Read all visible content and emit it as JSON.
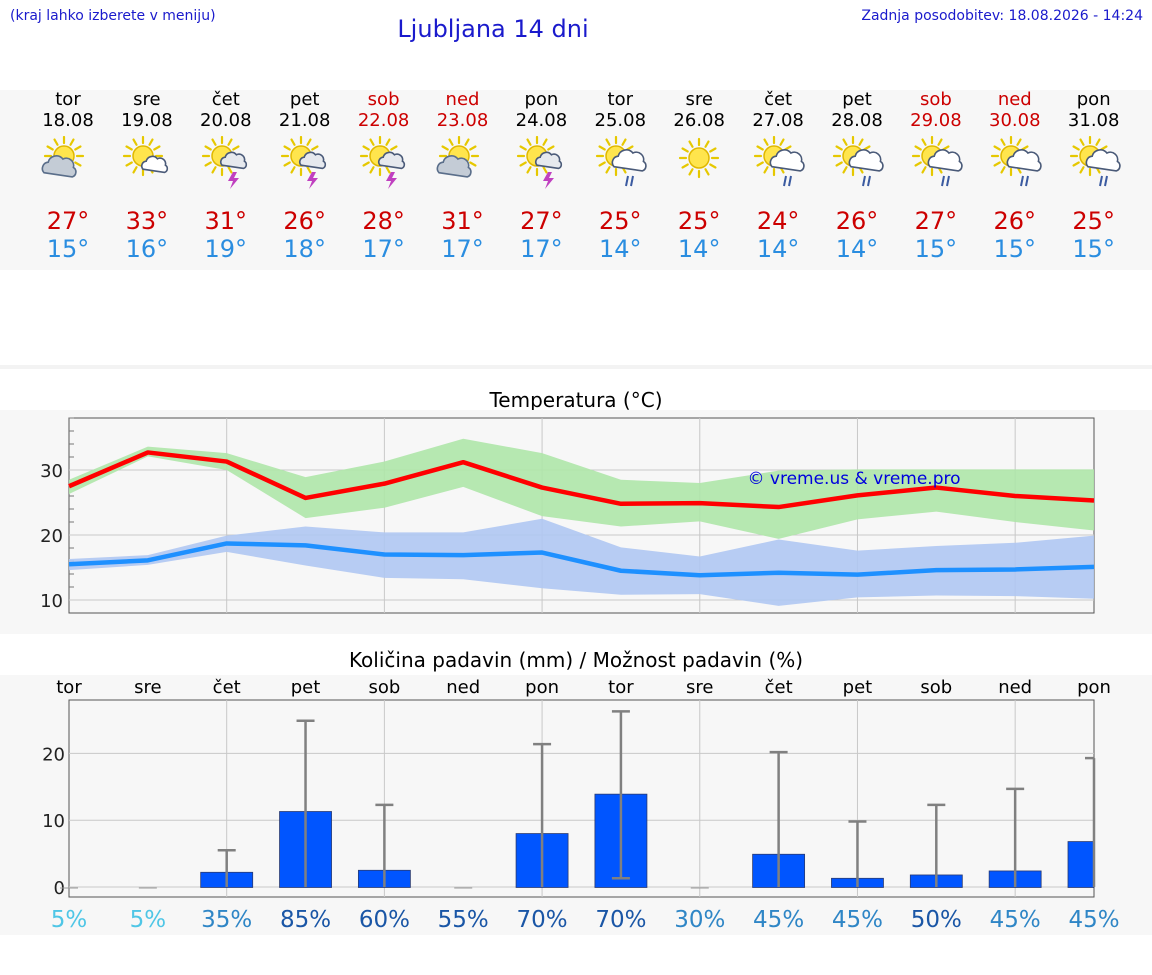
{
  "header": {
    "left": "(kraj lahko izberete v meniju)",
    "title": "Ljubljana 14 dni",
    "right": "Zadnja posodobitev: 18.08.2026 - 14:24"
  },
  "colors": {
    "title": "#1a1acc",
    "weekend": "#cc0000",
    "tmax": "#cc0000",
    "tmin": "#2a8de0",
    "tmax_line": "#ff0000",
    "tmin_line": "#1e90ff",
    "tmax_band": "#aee6a8",
    "tmin_band": "#afc7f2",
    "bar": "#0055ff",
    "errbar": "#808080"
  },
  "days": [
    {
      "name": "tor",
      "date": "18.08",
      "weekend": false,
      "icon": "sun-cloud-icon",
      "tmax": "27°",
      "tmin": "15°"
    },
    {
      "name": "sre",
      "date": "19.08",
      "weekend": false,
      "icon": "sun-small-cloud-icon",
      "tmax": "33°",
      "tmin": "16°"
    },
    {
      "name": "čet",
      "date": "20.08",
      "weekend": false,
      "icon": "sun-thunderstorm-icon",
      "tmax": "31°",
      "tmin": "19°"
    },
    {
      "name": "pet",
      "date": "21.08",
      "weekend": false,
      "icon": "sun-thunderstorm-icon",
      "tmax": "26°",
      "tmin": "18°"
    },
    {
      "name": "sob",
      "date": "22.08",
      "weekend": true,
      "icon": "sun-thunderstorm-icon",
      "tmax": "28°",
      "tmin": "17°"
    },
    {
      "name": "ned",
      "date": "23.08",
      "weekend": true,
      "icon": "sun-cloud-icon",
      "tmax": "31°",
      "tmin": "17°"
    },
    {
      "name": "pon",
      "date": "24.08",
      "weekend": false,
      "icon": "sun-thunderstorm-icon",
      "tmax": "27°",
      "tmin": "17°"
    },
    {
      "name": "tor",
      "date": "25.08",
      "weekend": false,
      "icon": "sun-rain-icon",
      "tmax": "25°",
      "tmin": "14°"
    },
    {
      "name": "sre",
      "date": "26.08",
      "weekend": false,
      "icon": "sun-icon",
      "tmax": "25°",
      "tmin": "14°"
    },
    {
      "name": "čet",
      "date": "27.08",
      "weekend": false,
      "icon": "sun-rain-icon",
      "tmax": "24°",
      "tmin": "14°"
    },
    {
      "name": "pet",
      "date": "28.08",
      "weekend": false,
      "icon": "sun-rain-icon",
      "tmax": "26°",
      "tmin": "14°"
    },
    {
      "name": "sob",
      "date": "29.08",
      "weekend": true,
      "icon": "sun-rain-icon",
      "tmax": "27°",
      "tmin": "15°"
    },
    {
      "name": "ned",
      "date": "30.08",
      "weekend": true,
      "icon": "sun-rain-icon",
      "tmax": "26°",
      "tmin": "15°"
    },
    {
      "name": "pon",
      "date": "31.08",
      "weekend": false,
      "icon": "sun-rain-icon",
      "tmax": "25°",
      "tmin": "15°"
    }
  ],
  "chart_data": [
    {
      "type": "line",
      "title": "Temperatura (°C)",
      "watermark": "© vreme.us & vreme.pro",
      "x": [
        0,
        1,
        2,
        3,
        4,
        5,
        6,
        7,
        8,
        9,
        10,
        11,
        12,
        13
      ],
      "ylim": [
        8,
        38
      ],
      "yticks": [
        10,
        20,
        30
      ],
      "grid": true,
      "series": [
        {
          "values": [
            27.5,
            32.7,
            31.3,
            25.7,
            27.9,
            31.2,
            27.3,
            24.8,
            24.9,
            24.3,
            26.1,
            27.3,
            26.0,
            25.3
          ]
        },
        {
          "values": [
            15.5,
            16.1,
            18.7,
            18.4,
            17.0,
            16.9,
            17.3,
            14.5,
            13.8,
            14.2,
            13.9,
            14.6,
            14.7,
            15.1
          ]
        }
      ],
      "bands": [
        {
          "series": 0,
          "upper": [
            28.5,
            33.6,
            32.6,
            28.9,
            31.3,
            34.8,
            32.6,
            28.5,
            28.0,
            29.9,
            30.1,
            30.1,
            30.1,
            30.1
          ],
          "lower": [
            26.3,
            32.1,
            30.0,
            22.6,
            24.2,
            27.4,
            22.9,
            21.3,
            22.1,
            19.4,
            22.4,
            23.6,
            22.0,
            20.7
          ]
        },
        {
          "series": 1,
          "upper": [
            16.3,
            16.9,
            19.9,
            21.3,
            20.4,
            20.4,
            22.5,
            18.1,
            16.7,
            19.3,
            17.6,
            18.3,
            18.8,
            19.9
          ],
          "lower": [
            14.6,
            15.4,
            17.4,
            15.3,
            13.4,
            13.2,
            11.8,
            10.8,
            10.9,
            9.1,
            10.4,
            10.7,
            10.6,
            10.2
          ]
        }
      ]
    },
    {
      "type": "bar",
      "title": "Količina padavin (mm) / Možnost padavin (%)",
      "categories": [
        "tor",
        "sre",
        "čet",
        "pet",
        "sob",
        "ned",
        "pon",
        "tor",
        "sre",
        "čet",
        "pet",
        "sob",
        "ned",
        "pon"
      ],
      "ylim": [
        -1.5,
        28
      ],
      "yticks": [
        0,
        10,
        20
      ],
      "grid": true,
      "values": [
        0,
        0,
        2.2,
        11.3,
        2.5,
        0,
        8.0,
        13.9,
        0,
        4.9,
        1.3,
        1.8,
        2.4,
        6.8
      ],
      "error_low": [
        0,
        0,
        0,
        0,
        0,
        0,
        0,
        1.3,
        0,
        0,
        0,
        0,
        0,
        0
      ],
      "error_high": [
        0,
        0,
        5.5,
        24.9,
        12.3,
        0,
        21.4,
        26.3,
        0,
        20.2,
        9.8,
        12.3,
        14.7,
        19.3
      ],
      "probability": [
        "5%",
        "5%",
        "35%",
        "85%",
        "60%",
        "55%",
        "70%",
        "70%",
        "30%",
        "45%",
        "45%",
        "50%",
        "45%",
        "45%"
      ],
      "probability_colors": [
        "#4fc6e6",
        "#4fc6e6",
        "#2f86c6",
        "#1a56a6",
        "#1a56a6",
        "#1a56a6",
        "#1a56a6",
        "#1a56a6",
        "#2f86c6",
        "#2f86c6",
        "#2f86c6",
        "#1a56a6",
        "#2f86c6",
        "#2f86c6"
      ]
    }
  ]
}
